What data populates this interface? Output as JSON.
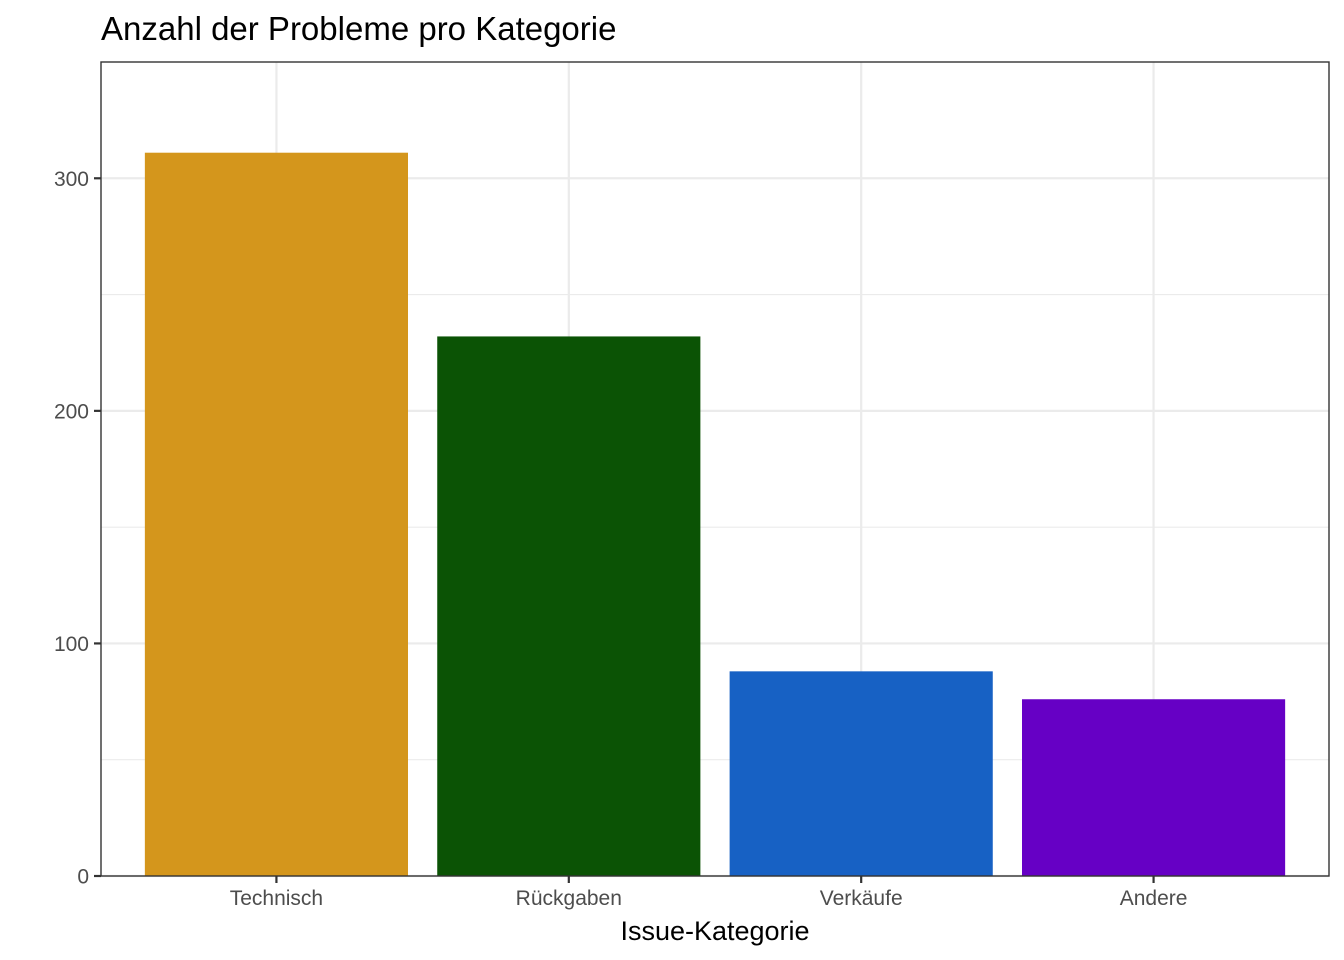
{
  "chart_data": {
    "type": "bar",
    "title": "Anzahl der Probleme pro Kategorie",
    "xlabel": "Issue-Kategorie",
    "ylabel": "",
    "categories": [
      "Technisch",
      "Rückgaben",
      "Verkäufe",
      "Andere"
    ],
    "values": [
      311,
      232,
      88,
      76
    ],
    "colors": [
      "#D4961C",
      "#0B5305",
      "#1761C4",
      "#6600C5"
    ],
    "ylim": [
      0,
      350
    ],
    "yticks": [
      0,
      100,
      200,
      300
    ],
    "yticks_minor": [
      50,
      150,
      250
    ],
    "grid": true,
    "legend": "none",
    "panel_background": "#FFFFFF",
    "grid_color": "#EBEBEB"
  }
}
